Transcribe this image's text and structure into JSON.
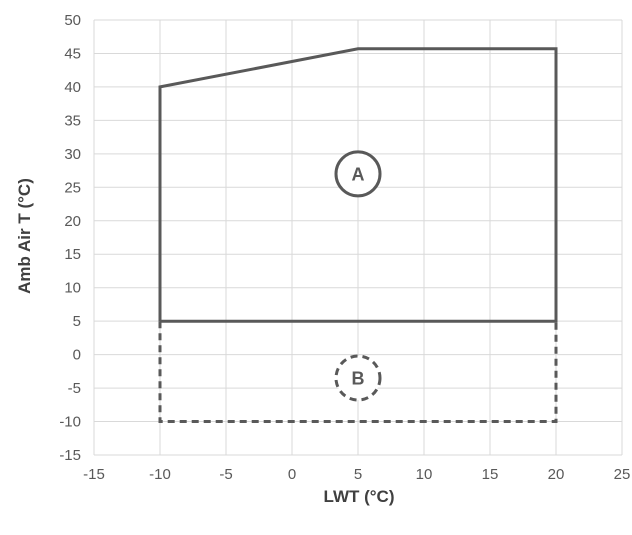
{
  "chart_data": {
    "type": "line",
    "title": "",
    "xlabel": "LWT (°C)",
    "ylabel": "Amb Air T (°C)",
    "xlim": [
      -15,
      25
    ],
    "ylim": [
      -15,
      50
    ],
    "xticks": [
      -15,
      -10,
      -5,
      0,
      5,
      10,
      15,
      20,
      25
    ],
    "yticks": [
      -15,
      -10,
      -5,
      0,
      5,
      10,
      15,
      20,
      25,
      30,
      35,
      40,
      45,
      50
    ],
    "grid": true,
    "legend": "none",
    "color": "#595959",
    "series": [
      {
        "line_style": "solid",
        "x": [
          -10,
          -10,
          5,
          20,
          20,
          -10
        ],
        "y": [
          5,
          40,
          45.7,
          45.7,
          5,
          5
        ]
      },
      {
        "line_style": "dashed",
        "x": [
          -10,
          -10,
          20,
          20
        ],
        "y": [
          5,
          -10,
          -10,
          5
        ]
      }
    ],
    "annotations": [
      {
        "text": "A",
        "x": 5,
        "y": 27,
        "style": "solid-circle"
      },
      {
        "text": "B",
        "x": 5,
        "y": -3.5,
        "style": "dashed-circle"
      }
    ]
  }
}
